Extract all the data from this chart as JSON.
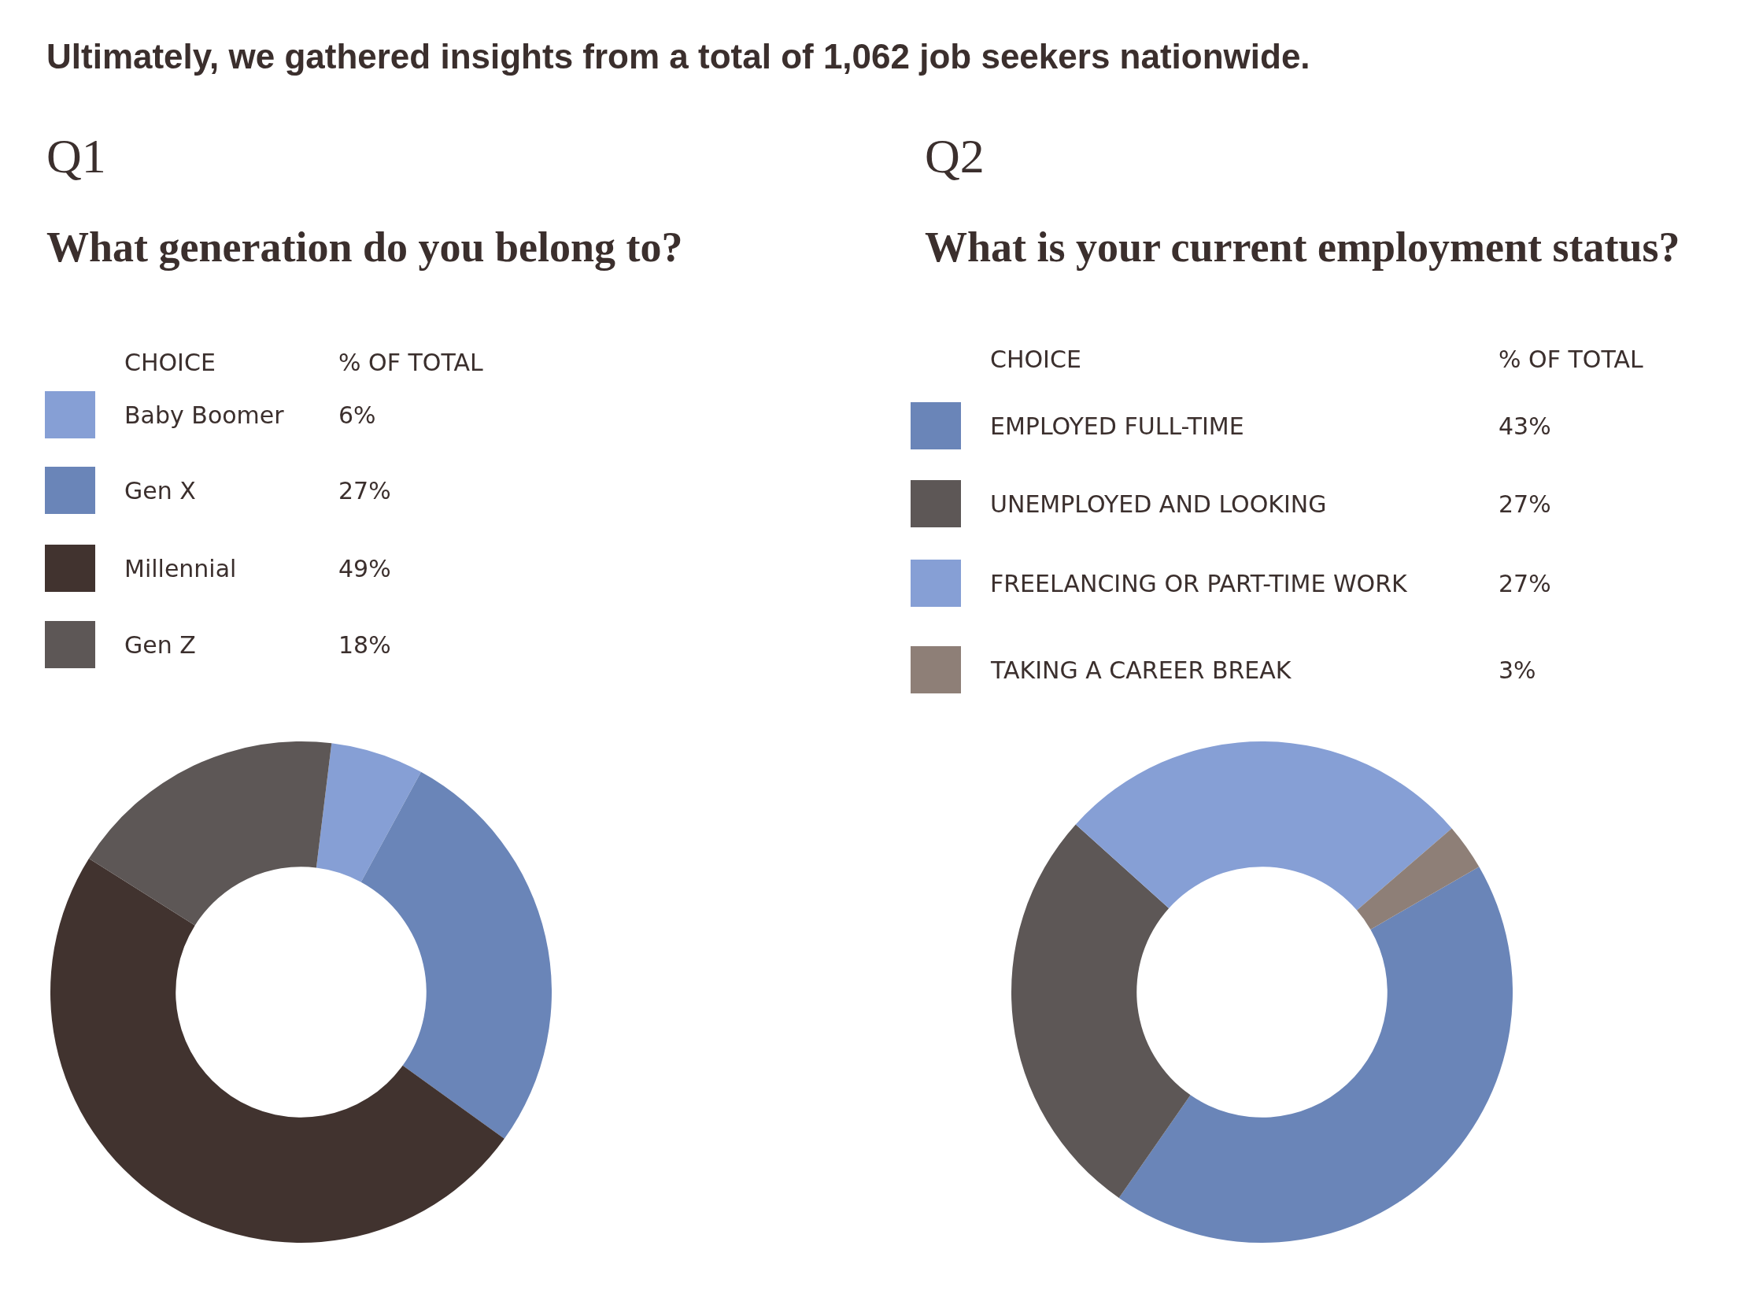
{
  "chart_data": [
    {
      "type": "donut",
      "subtitle": "Q1",
      "title": "What generation do you belong to?",
      "annotations": [
        "Ultimately, we gathered insights from a total of 1,062 job seekers nationwide.",
        "CHOICE",
        "% OF TOTAL"
      ],
      "categories": [
        "Baby Boomer",
        "Gen X",
        "Millennial",
        "Gen Z"
      ],
      "values": [
        6,
        27,
        49,
        18
      ],
      "value_labels": [
        "6%",
        "27%",
        "49%",
        "18%"
      ],
      "colors": [
        "#869fd5",
        "#6a85b8",
        "#41332f",
        "#5d5756"
      ],
      "legend": "top left"
    },
    {
      "type": "donut",
      "subtitle": "Q2",
      "title": "What is your current employment status?",
      "annotations": [
        "CHOICE",
        "% OF TOTAL"
      ],
      "categories": [
        "EMPLOYED FULL-TIME",
        "UNEMPLOYED AND LOOKING",
        "FREELANCING OR PART-TIME WORK",
        "TAKING A CAREER BREAK"
      ],
      "values": [
        43,
        27,
        27,
        3
      ],
      "value_labels": [
        "43%",
        "27%",
        "27%",
        "3%"
      ],
      "colors": [
        "#6a85b8",
        "#5d5756",
        "#869fd5",
        "#8e7f77"
      ],
      "legend": "top left"
    }
  ]
}
